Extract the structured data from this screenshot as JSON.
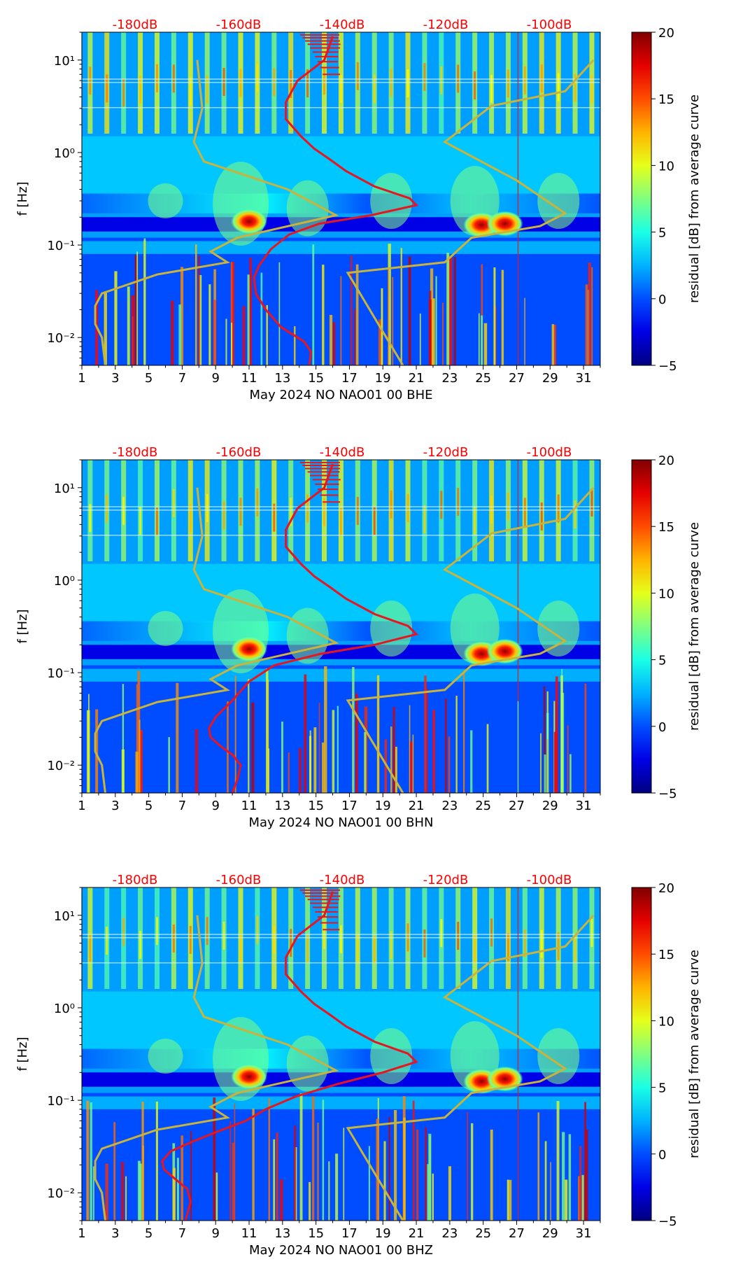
{
  "figure": {
    "top_axis_labels": [
      "-180dB",
      "-160dB",
      "-140dB",
      "-120dB",
      "-100dB"
    ],
    "top_axis_color": "#ff0000",
    "ylabel": "f [Hz]",
    "colorbar_label": "residual [dB] from average curve",
    "colorbar_ticks": [
      "−5",
      "0",
      "5",
      "10",
      "15",
      "20"
    ],
    "colormap": "jet"
  },
  "chart_data": [
    {
      "type": "heatmap",
      "xlabel": "May 2024 NO NAO01 00 BHE",
      "ylabel": "f [Hz]",
      "x_tick_labels": [
        "1",
        "3",
        "5",
        "7",
        "9",
        "11",
        "13",
        "15",
        "17",
        "19",
        "21",
        "23",
        "25",
        "27",
        "29",
        "31"
      ],
      "y_tick_labels": [
        "10⁻²",
        "10⁻¹",
        "10⁰",
        "10¹"
      ],
      "xlim": [
        1,
        32
      ],
      "ylim_hz": [
        0.005,
        20
      ],
      "y_scale": "log",
      "colorbar_range_db": [
        -5,
        20
      ],
      "noise_model_curves": [
        {
          "color": "#c8b43c",
          "points": [
            [
              2.4,
              0.005
            ],
            [
              2.2,
              0.01
            ],
            [
              1.8,
              0.014
            ],
            [
              1.8,
              0.022
            ],
            [
              2.2,
              0.03
            ],
            [
              5.5,
              0.048
            ],
            [
              9.7,
              0.065
            ],
            [
              8.7,
              0.085
            ],
            [
              10.3,
              0.12
            ],
            [
              16.2,
              0.21
            ],
            [
              13.3,
              0.4
            ],
            [
              8.3,
              0.8
            ],
            [
              7.7,
              1.3
            ],
            [
              8.2,
              3.0
            ],
            [
              7.9,
              10
            ]
          ]
        },
        {
          "color": "#c8b43c",
          "points": [
            [
              20.2,
              0.005
            ],
            [
              16.9,
              0.05
            ],
            [
              22.7,
              0.065
            ],
            [
              24.3,
              0.12
            ],
            [
              28.4,
              0.16
            ],
            [
              29.9,
              0.22
            ],
            [
              27.0,
              0.5
            ],
            [
              22.7,
              1.3
            ],
            [
              25.5,
              3.2
            ],
            [
              29.9,
              4.6
            ],
            [
              31.6,
              10
            ]
          ]
        }
      ],
      "average_psd_curve": {
        "color": "#e8151e",
        "points": [
          [
            14.6,
            0.005
          ],
          [
            14.7,
            0.007
          ],
          [
            14.3,
            0.009
          ],
          [
            12.9,
            0.013
          ],
          [
            12.0,
            0.02
          ],
          [
            11.4,
            0.03
          ],
          [
            11.3,
            0.045
          ],
          [
            11.6,
            0.06
          ],
          [
            12.3,
            0.09
          ],
          [
            13.4,
            0.13
          ],
          [
            15.2,
            0.17
          ],
          [
            18.3,
            0.21
          ],
          [
            21.0,
            0.27
          ],
          [
            20.6,
            0.32
          ],
          [
            18.5,
            0.43
          ],
          [
            16.8,
            0.63
          ],
          [
            15.8,
            0.85
          ],
          [
            14.9,
            1.1
          ],
          [
            14.1,
            1.5
          ],
          [
            13.2,
            2.3
          ],
          [
            13.2,
            3.5
          ],
          [
            13.9,
            6.0
          ],
          [
            15.5,
            10.0
          ],
          [
            16.0,
            18.0
          ]
        ]
      },
      "hot_spots": [
        {
          "x": 11.0,
          "f": 0.18,
          "residual_db": 20
        },
        {
          "x": 24.9,
          "f": 0.165,
          "residual_db": 20
        },
        {
          "x": 26.3,
          "f": 0.17,
          "residual_db": 17
        }
      ]
    },
    {
      "type": "heatmap",
      "xlabel": "May 2024 NO NAO01 00 BHN",
      "ylabel": "f [Hz]",
      "x_tick_labels": [
        "1",
        "3",
        "5",
        "7",
        "9",
        "11",
        "13",
        "15",
        "17",
        "19",
        "21",
        "23",
        "25",
        "27",
        "29",
        "31"
      ],
      "y_tick_labels": [
        "10⁻²",
        "10⁻¹",
        "10⁰",
        "10¹"
      ],
      "xlim": [
        1,
        32
      ],
      "ylim_hz": [
        0.005,
        20
      ],
      "y_scale": "log",
      "colorbar_range_db": [
        -5,
        20
      ],
      "noise_model_curves": [
        {
          "color": "#c8b43c",
          "points": [
            [
              2.4,
              0.005
            ],
            [
              2.2,
              0.01
            ],
            [
              1.8,
              0.014
            ],
            [
              1.8,
              0.022
            ],
            [
              2.2,
              0.03
            ],
            [
              5.5,
              0.048
            ],
            [
              9.7,
              0.065
            ],
            [
              8.7,
              0.085
            ],
            [
              10.3,
              0.12
            ],
            [
              16.2,
              0.21
            ],
            [
              13.3,
              0.4
            ],
            [
              8.3,
              0.8
            ],
            [
              7.7,
              1.3
            ],
            [
              8.2,
              3.0
            ],
            [
              7.9,
              10
            ]
          ]
        },
        {
          "color": "#c8b43c",
          "points": [
            [
              20.2,
              0.005
            ],
            [
              16.9,
              0.05
            ],
            [
              22.7,
              0.065
            ],
            [
              24.3,
              0.12
            ],
            [
              28.4,
              0.16
            ],
            [
              29.9,
              0.22
            ],
            [
              27.0,
              0.5
            ],
            [
              22.7,
              1.3
            ],
            [
              25.5,
              3.2
            ],
            [
              29.9,
              4.6
            ],
            [
              31.6,
              10
            ]
          ]
        }
      ],
      "average_psd_curve": {
        "color": "#e8151e",
        "points": [
          [
            10.0,
            0.005
          ],
          [
            10.3,
            0.007
          ],
          [
            10.5,
            0.01
          ],
          [
            10.0,
            0.013
          ],
          [
            9.3,
            0.016
          ],
          [
            8.7,
            0.02
          ],
          [
            8.6,
            0.025
          ],
          [
            9.0,
            0.033
          ],
          [
            10.0,
            0.05
          ],
          [
            11.0,
            0.08
          ],
          [
            12.5,
            0.12
          ],
          [
            15.3,
            0.16
          ],
          [
            18.5,
            0.2
          ],
          [
            21.0,
            0.26
          ],
          [
            20.5,
            0.32
          ],
          [
            18.5,
            0.43
          ],
          [
            16.8,
            0.63
          ],
          [
            15.8,
            0.85
          ],
          [
            14.9,
            1.1
          ],
          [
            14.1,
            1.5
          ],
          [
            13.2,
            2.3
          ],
          [
            13.2,
            3.5
          ],
          [
            13.9,
            6.0
          ],
          [
            15.5,
            10.0
          ],
          [
            16.0,
            18.0
          ]
        ]
      },
      "hot_spots": [
        {
          "x": 11.0,
          "f": 0.18,
          "residual_db": 20
        },
        {
          "x": 24.9,
          "f": 0.16,
          "residual_db": 20
        },
        {
          "x": 26.3,
          "f": 0.17,
          "residual_db": 17
        }
      ]
    },
    {
      "type": "heatmap",
      "xlabel": "May 2024 NO NAO01 00 BHZ",
      "ylabel": "f [Hz]",
      "x_tick_labels": [
        "1",
        "3",
        "5",
        "7",
        "9",
        "11",
        "13",
        "15",
        "17",
        "19",
        "21",
        "23",
        "25",
        "27",
        "29",
        "31"
      ],
      "y_tick_labels": [
        "10⁻²",
        "10⁻¹",
        "10⁰",
        "10¹"
      ],
      "xlim": [
        1,
        32
      ],
      "ylim_hz": [
        0.005,
        20
      ],
      "y_scale": "log",
      "colorbar_range_db": [
        -5,
        20
      ],
      "noise_model_curves": [
        {
          "color": "#c8b43c",
          "points": [
            [
              2.4,
              0.005
            ],
            [
              2.2,
              0.01
            ],
            [
              1.8,
              0.014
            ],
            [
              1.8,
              0.022
            ],
            [
              2.2,
              0.03
            ],
            [
              5.5,
              0.048
            ],
            [
              9.7,
              0.065
            ],
            [
              8.7,
              0.085
            ],
            [
              10.3,
              0.12
            ],
            [
              16.2,
              0.21
            ],
            [
              13.3,
              0.4
            ],
            [
              8.3,
              0.8
            ],
            [
              7.7,
              1.3
            ],
            [
              8.2,
              3.0
            ],
            [
              7.9,
              10
            ]
          ]
        },
        {
          "color": "#c8b43c",
          "points": [
            [
              20.2,
              0.005
            ],
            [
              16.9,
              0.05
            ],
            [
              22.7,
              0.065
            ],
            [
              24.3,
              0.12
            ],
            [
              28.4,
              0.16
            ],
            [
              29.9,
              0.22
            ],
            [
              27.0,
              0.5
            ],
            [
              22.7,
              1.3
            ],
            [
              25.5,
              3.2
            ],
            [
              29.9,
              4.6
            ],
            [
              31.6,
              10
            ]
          ]
        }
      ],
      "average_psd_curve": {
        "color": "#e8151e",
        "points": [
          [
            7.2,
            0.005
          ],
          [
            7.5,
            0.008
          ],
          [
            7.3,
            0.011
          ],
          [
            6.6,
            0.014
          ],
          [
            5.9,
            0.018
          ],
          [
            5.8,
            0.022
          ],
          [
            6.3,
            0.028
          ],
          [
            7.5,
            0.035
          ],
          [
            9.0,
            0.045
          ],
          [
            10.8,
            0.06
          ],
          [
            12.0,
            0.08
          ],
          [
            13.8,
            0.11
          ],
          [
            16.3,
            0.15
          ],
          [
            19.0,
            0.2
          ],
          [
            21.0,
            0.26
          ],
          [
            20.5,
            0.32
          ],
          [
            18.5,
            0.43
          ],
          [
            16.8,
            0.63
          ],
          [
            15.8,
            0.85
          ],
          [
            14.9,
            1.1
          ],
          [
            14.1,
            1.5
          ],
          [
            13.2,
            2.3
          ],
          [
            13.2,
            3.5
          ],
          [
            13.9,
            6.0
          ],
          [
            15.5,
            10.0
          ],
          [
            16.0,
            18.0
          ]
        ]
      },
      "hot_spots": [
        {
          "x": 11.0,
          "f": 0.18,
          "residual_db": 20
        },
        {
          "x": 24.9,
          "f": 0.16,
          "residual_db": 20
        },
        {
          "x": 26.3,
          "f": 0.17,
          "residual_db": 17
        }
      ]
    }
  ]
}
